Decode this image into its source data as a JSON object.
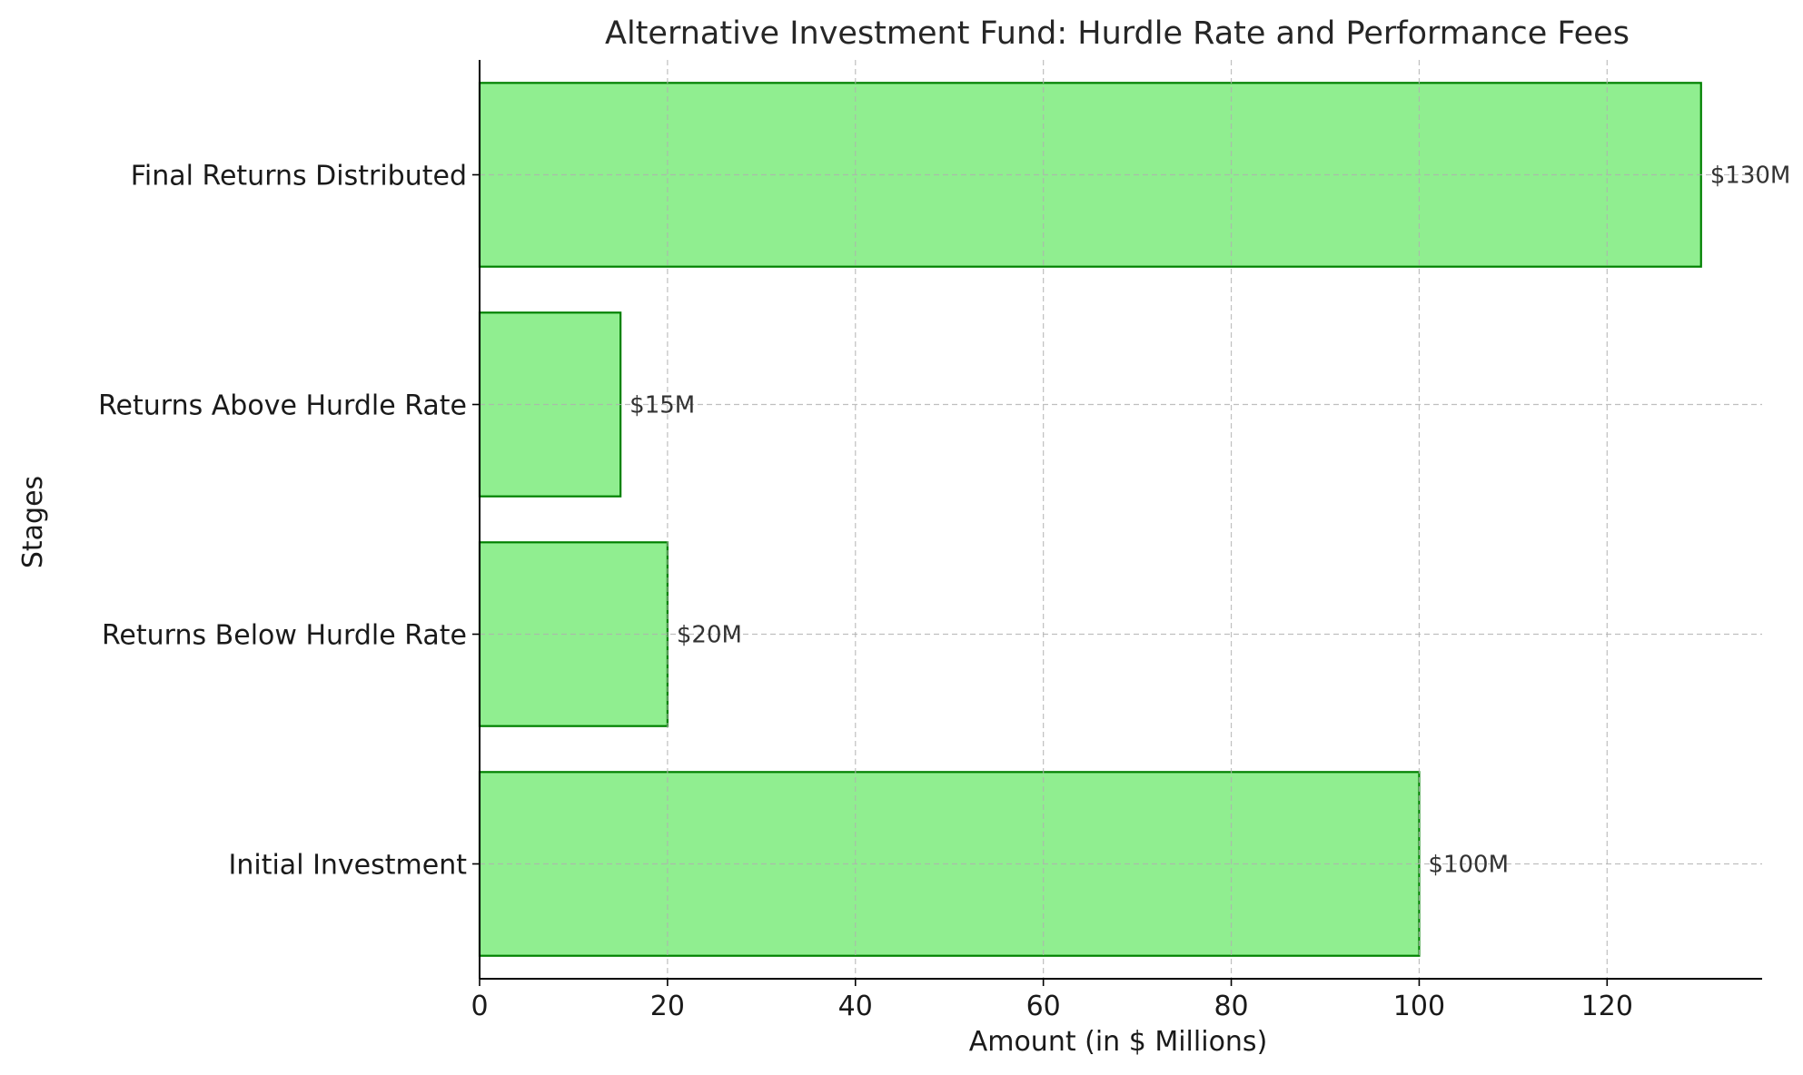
{
  "chart_data": {
    "type": "bar",
    "orientation": "horizontal",
    "title": "Alternative Investment Fund: Hurdle Rate and Performance Fees",
    "xlabel": "Amount (in $ Millions)",
    "ylabel": "Stages",
    "categories": [
      "Initial Investment",
      "Returns Below Hurdle Rate",
      "Returns Above Hurdle Rate",
      "Final Returns Distributed"
    ],
    "values": [
      100,
      20,
      15,
      130
    ],
    "data_labels": [
      "$100M",
      "$20M",
      "$15M",
      "$130M"
    ],
    "xlim": [
      0,
      136.5
    ],
    "xticks": [
      0,
      20,
      40,
      60,
      80,
      100,
      120
    ],
    "grid": true,
    "colors": {
      "bar_fill": "#90ee90",
      "bar_edge": "#008000"
    }
  }
}
